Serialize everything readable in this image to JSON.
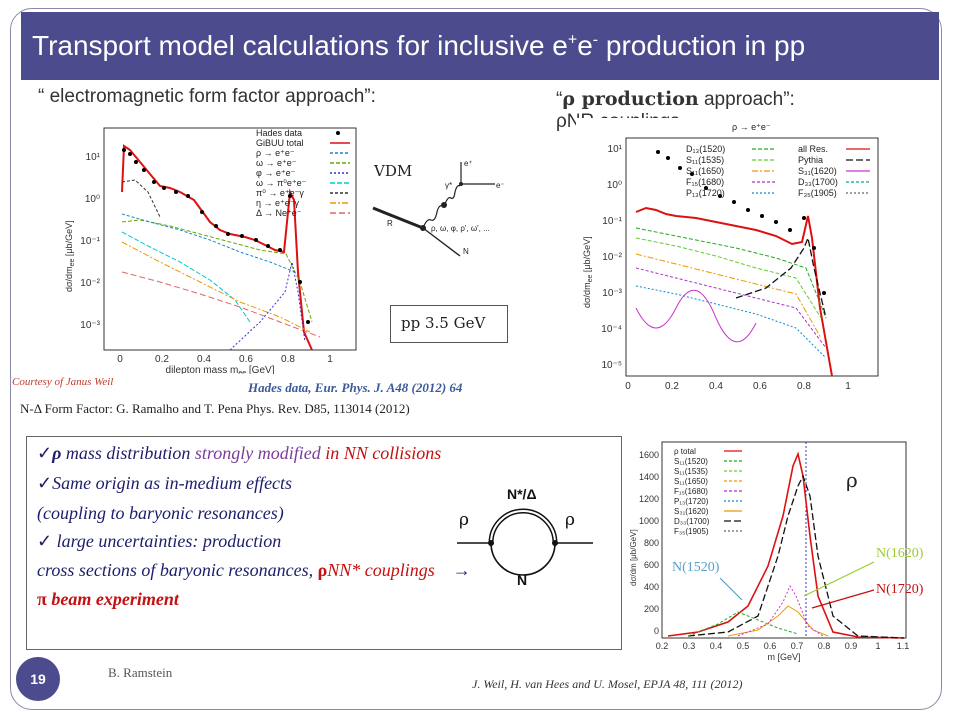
{
  "header": {
    "title": "Transport model calculations for inclusive e",
    "title_sup1": "+",
    "title_mid": "e",
    "title_sup2": "-",
    "title_end": " production in pp"
  },
  "left": {
    "approach": "“ electromagnetic form factor approach”:",
    "courtesy": "Courtesy of Janus Weil",
    "hades": "Hades data, Eur. Phys. J. A48 (2012) 64",
    "form_factor": "N-Δ  Form Factor:  G. Ramalho and T. Pena  Phys. Rev. D85, 113014 (2012)",
    "legend": [
      "Hades data",
      "GiBUU total",
      "ρ → e⁺e⁻",
      "ω → e⁺e⁻",
      "φ → e⁺e⁻",
      "ω → π⁰e⁺e⁻",
      "π⁰ → e⁺e⁻γ",
      "η → e⁺e⁻γ",
      "Δ → Ne⁺e⁻"
    ],
    "xlabel": "dilepton mass m",
    "xlabel_sub": "ee",
    "xlabel_unit": " [GeV]",
    "ylabel": "dσ/dm",
    "ylabel_sub": "ee",
    "ylabel_unit": " [μb/GeV]",
    "xticks": [
      "0",
      "0.2",
      "0.4",
      "0.6",
      "0.8",
      "1"
    ],
    "yticks": [
      "10¹",
      "10⁰",
      "10⁻¹",
      "10⁻²",
      "10⁻³"
    ]
  },
  "diagram": {
    "vdm": "VDM",
    "mesons": "ρ, ω, φ, ρ', ω', ...",
    "R": "R",
    "N": "N",
    "gamma": "γ*",
    "ep": "e⁺",
    "em": "e⁻",
    "pp_label": "pp 3.5 GeV"
  },
  "right": {
    "approach_q": "“",
    "approach_rho": "ρ production",
    "approach_end": " approach”:",
    "couplings": "ρNR couplings",
    "reaction": "ρ → e⁺e⁻",
    "legend_left": [
      "D₁₃(1520)",
      "S₁₁(1535)",
      "S₁₁(1650)",
      "F₁₅(1680)",
      "P₁₃(1720)"
    ],
    "legend_right": [
      "all Res.",
      "Pythia",
      "S₃₁(1620)",
      "D₃₃(1700)",
      "F₃₅(1905)"
    ],
    "ylabel": "dσ/dm",
    "ylabel_sub": "ee",
    "ylabel_unit": " [μb/GeV]",
    "xticks": [
      "0",
      "0.2",
      "0.4",
      "0.6",
      "0.8",
      "1"
    ],
    "yticks": [
      "10¹",
      "10⁰",
      "10⁻¹",
      "10⁻²",
      "10⁻³",
      "10⁻⁴",
      "10⁻⁵"
    ]
  },
  "bottom_right": {
    "legend": [
      "ρ total",
      "S₁₁(1520)",
      "S₁₁(1535)",
      "S₁₁(1650)",
      "F₁₅(1680)",
      "P₁₃(1720)",
      "S₃₁(1620)",
      "D₃₃(1700)",
      "F₃₅(1905)"
    ],
    "xlabel": "m [GeV]",
    "ylabel": "dσ/dm [μb/GeV]",
    "xticks": [
      "0.2",
      "0.3",
      "0.4",
      "0.5",
      "0.6",
      "0.7",
      "0.8",
      "0.9",
      "1",
      "1.1"
    ],
    "yticks": [
      "1600",
      "1400",
      "1200",
      "1000",
      "800",
      "600",
      "400",
      "200",
      "0"
    ],
    "rho": "ρ",
    "n1520": "N(1520)",
    "n1620": "N(1620)",
    "n1720": "N(1720)",
    "citation": "J. Weil, H. van Hees and U. Mosel, EPJA 48, 111 (2012)"
  },
  "textbox": {
    "check": "✓",
    "l1_rho": "ρ",
    "l1_a": " mass distribution ",
    "l1_b": "strongly modified",
    "l1_c": "   in NN collisions",
    "l2": "Same origin as in-medium effects",
    "l3": " (coupling to baryonic resonances)",
    "l4": " large uncertainties: production",
    "l5_a": "cross sections of baryonic resonances, ",
    "l5_rho": "ρ",
    "l5_b": "NN* couplings",
    "l5_arrow": "→",
    "l6_pi": "π",
    "l6_b": " beam experiment",
    "loop_top": "N*/Δ",
    "loop_bottom": "N",
    "rho_left": "ρ",
    "rho_right": "ρ"
  },
  "footer": {
    "page": "19",
    "author": "B. Ramstein"
  },
  "colors": {
    "title_bar": "#4b4b8d",
    "red": "#c41010",
    "purple": "#7a3c9a",
    "navy": "#1d1d6b"
  }
}
